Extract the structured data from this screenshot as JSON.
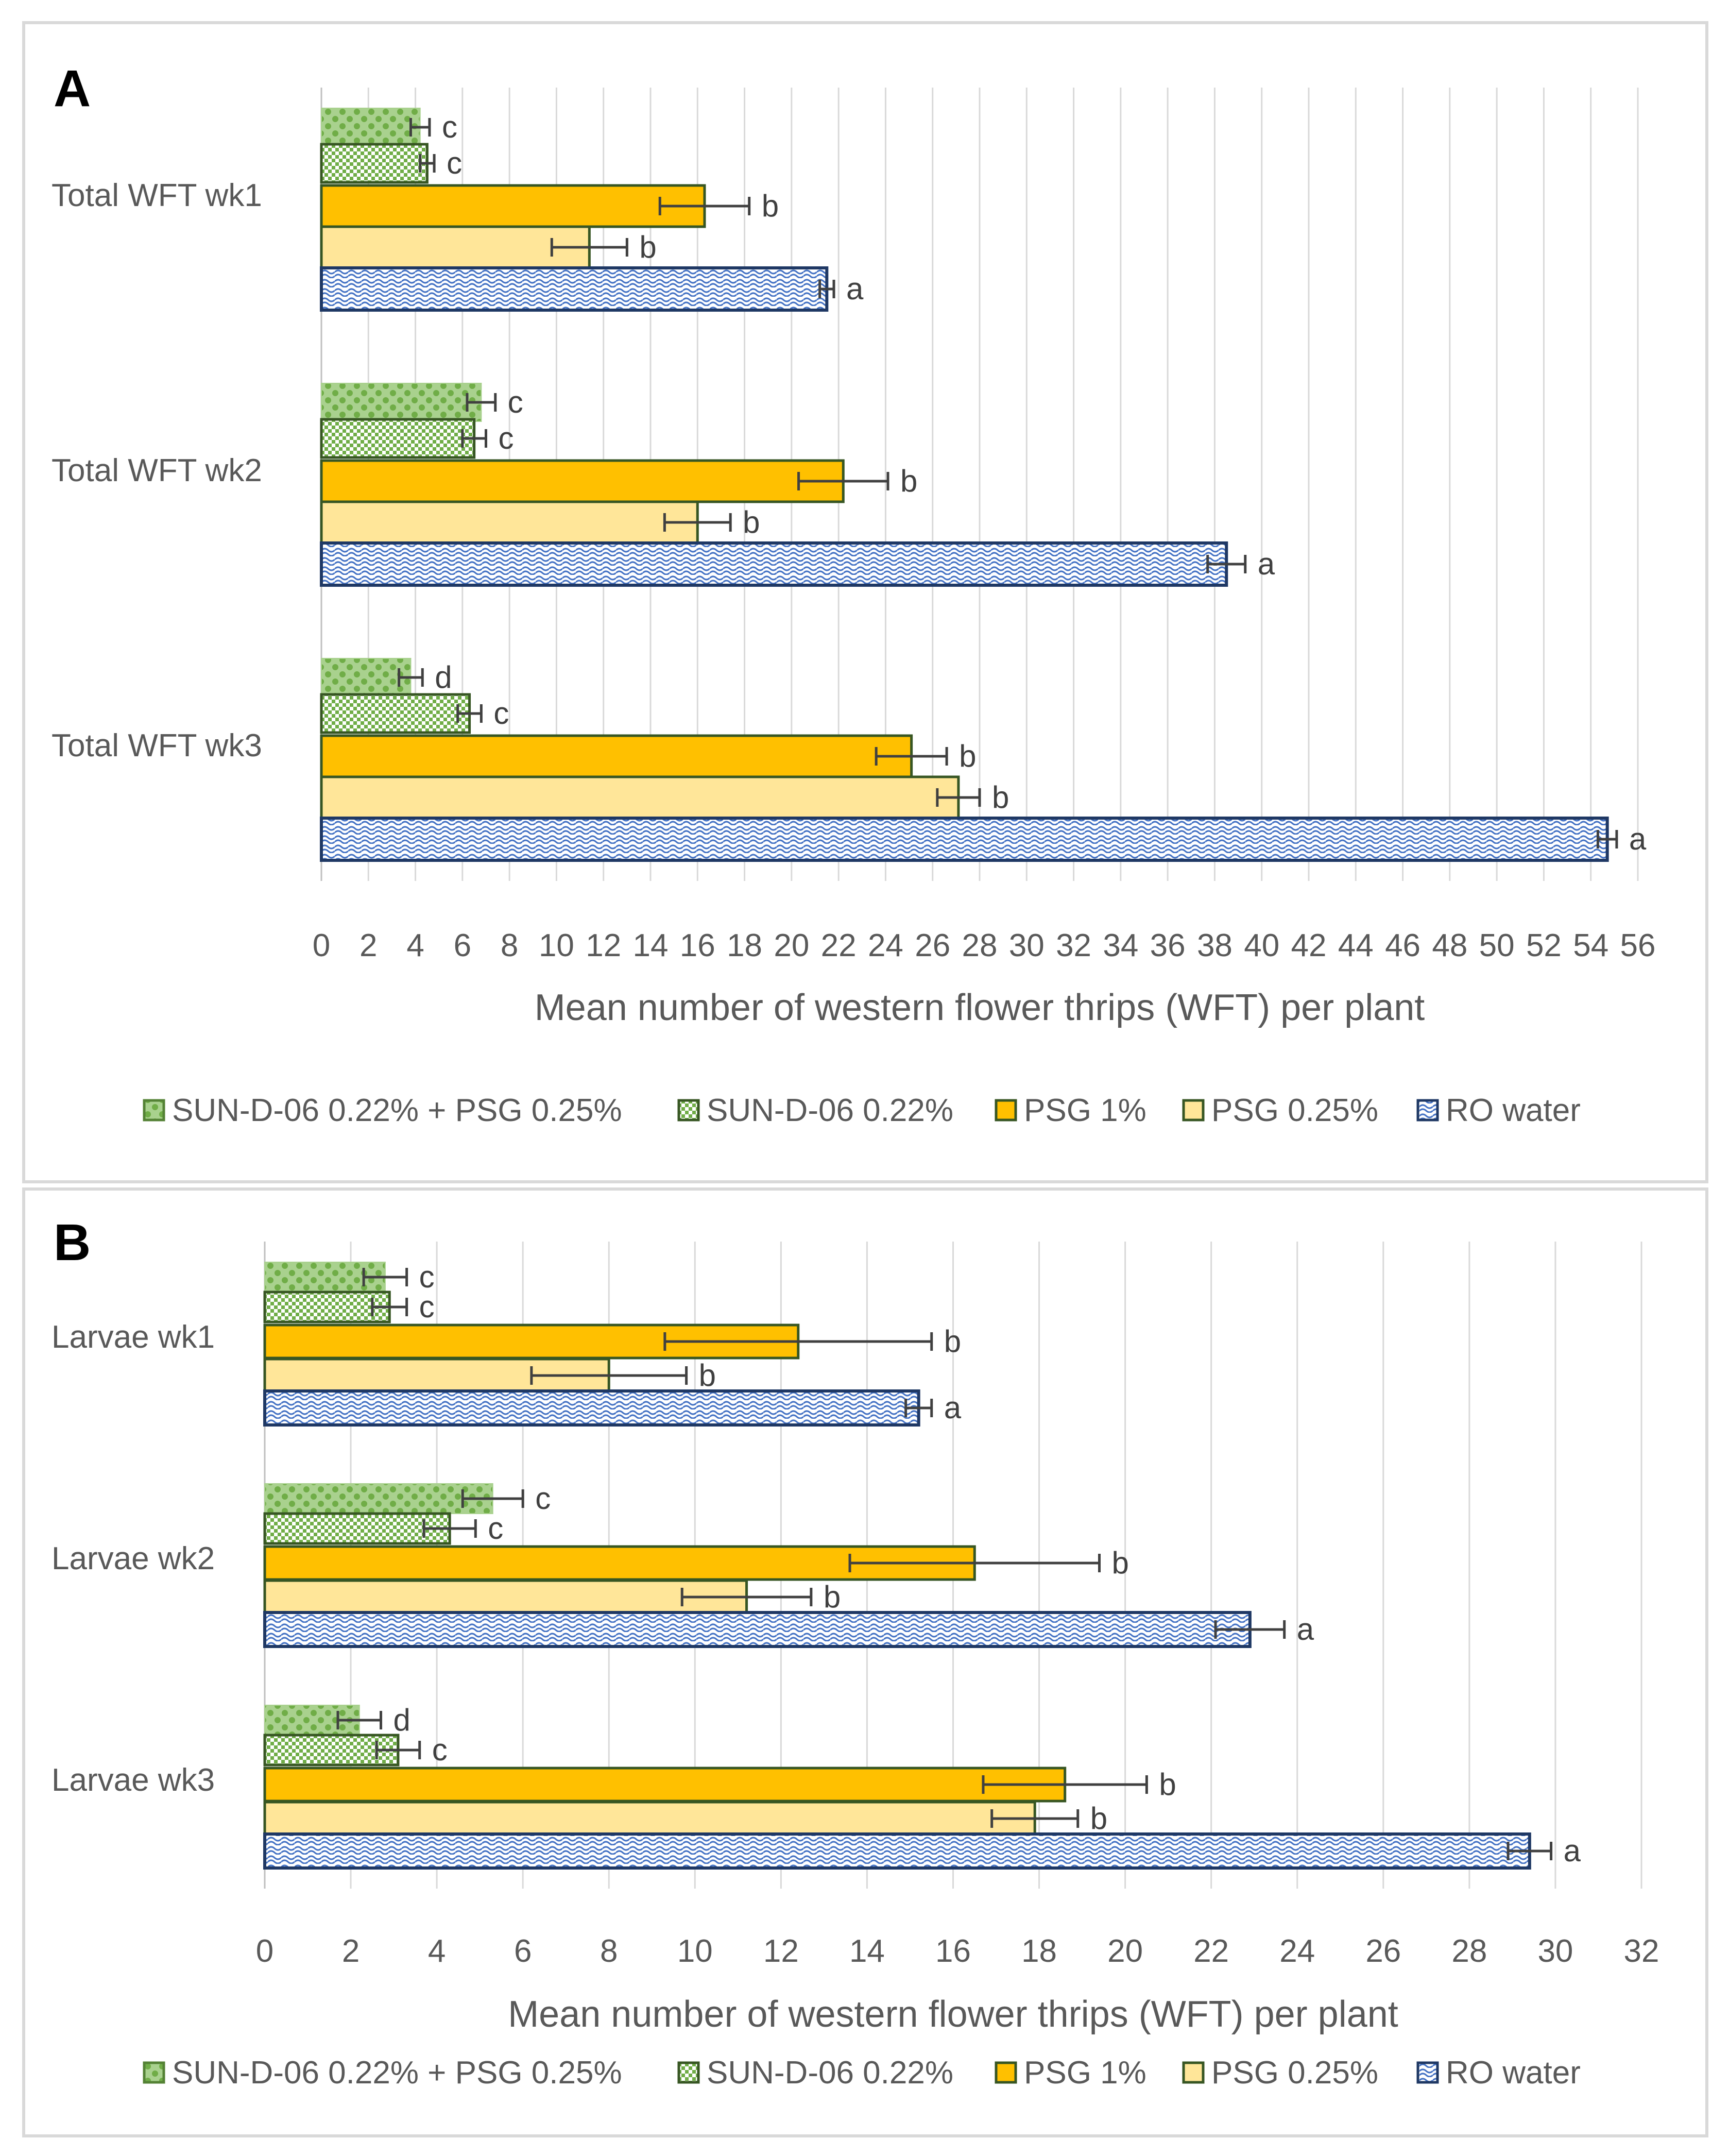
{
  "colors": {
    "combo_fill": "#a9d18e",
    "combo_dot": "#548235",
    "sun_fill": "#ffffff",
    "sun_check": "#70ad47",
    "sun_stroke": "#375623",
    "psg1_fill": "#ffc000",
    "psg1_stroke": "#375623",
    "psg025_fill": "#ffe699",
    "psg025_stroke": "#375623",
    "ro_fill": "#ffffff",
    "ro_wave": "#4472c4",
    "ro_stroke": "#1f3864",
    "grid": "#d9d9d9",
    "errorbar": "#404040"
  },
  "chart_data": [
    {
      "type": "bar",
      "orientation": "horizontal",
      "panel_label": "A",
      "categories": [
        "Total WFT wk1",
        "Total WFT wk2",
        "Total WFT wk3"
      ],
      "xlabel": "Mean number of western flower thrips (WFT) per plant",
      "xlim": [
        0,
        56
      ],
      "xticks": [
        "0",
        "2",
        "4",
        "6",
        "8",
        "10",
        "12",
        "14",
        "16",
        "18",
        "20",
        "22",
        "24",
        "26",
        "28",
        "30",
        "32",
        "34",
        "36",
        "38",
        "40",
        "42",
        "44",
        "46",
        "48",
        "50",
        "52",
        "54",
        "56"
      ],
      "grid": "vertical",
      "legend_position": "bottom",
      "series": [
        {
          "name": "SUN-D-06 0.22% + PSG 0.25%",
          "key": "combo",
          "values": [
            4.2,
            6.8,
            3.8
          ],
          "errors": [
            0.4,
            0.6,
            0.5
          ],
          "letters": [
            "c",
            "c",
            "d"
          ]
        },
        {
          "name": "SUN-D-06 0.22%",
          "key": "sun",
          "values": [
            4.5,
            6.5,
            6.3
          ],
          "errors": [
            0.3,
            0.5,
            0.5
          ],
          "letters": [
            "c",
            "c",
            "c"
          ]
        },
        {
          "name": "PSG 1%",
          "key": "psg1",
          "values": [
            16.3,
            22.2,
            25.1
          ],
          "errors": [
            1.9,
            1.9,
            1.5
          ],
          "letters": [
            "b",
            "b",
            "b"
          ]
        },
        {
          "name": "PSG 0.25%",
          "key": "psg025",
          "values": [
            11.4,
            16.0,
            27.1
          ],
          "errors": [
            1.6,
            1.4,
            0.9
          ],
          "letters": [
            "b",
            "b",
            "b"
          ]
        },
        {
          "name": "RO water",
          "key": "ro",
          "values": [
            21.5,
            38.5,
            54.7
          ],
          "errors": [
            0.3,
            0.8,
            0.4
          ],
          "letters": [
            "a",
            "a",
            "a"
          ]
        }
      ]
    },
    {
      "type": "bar",
      "orientation": "horizontal",
      "panel_label": "B",
      "categories": [
        "Larvae wk1",
        "Larvae wk2",
        "Larvae wk3"
      ],
      "xlabel": "Mean number of western flower thrips (WFT) per plant",
      "xlim": [
        0,
        32
      ],
      "xticks": [
        "0",
        "2",
        "4",
        "6",
        "8",
        "10",
        "12",
        "14",
        "16",
        "18",
        "20",
        "22",
        "24",
        "26",
        "28",
        "30",
        "32"
      ],
      "grid": "vertical",
      "legend_position": "bottom",
      "series": [
        {
          "name": "SUN-D-06 0.22% + PSG 0.25%",
          "key": "combo",
          "values": [
            2.8,
            5.3,
            2.2
          ],
          "errors": [
            0.5,
            0.7,
            0.5
          ],
          "letters": [
            "c",
            "c",
            "d"
          ]
        },
        {
          "name": "SUN-D-06 0.22%",
          "key": "sun",
          "values": [
            2.9,
            4.3,
            3.1
          ],
          "errors": [
            0.4,
            0.6,
            0.5
          ],
          "letters": [
            "c",
            "c",
            "c"
          ]
        },
        {
          "name": "PSG 1%",
          "key": "psg1",
          "values": [
            12.4,
            16.5,
            18.6
          ],
          "errors": [
            3.1,
            2.9,
            1.9
          ],
          "letters": [
            "b",
            "b",
            "b"
          ]
        },
        {
          "name": "PSG 0.25%",
          "key": "psg025",
          "values": [
            8.0,
            11.2,
            17.9
          ],
          "errors": [
            1.8,
            1.5,
            1.0
          ],
          "letters": [
            "b",
            "b",
            "b"
          ]
        },
        {
          "name": "RO water",
          "key": "ro",
          "values": [
            15.2,
            22.9,
            29.4
          ],
          "errors": [
            0.3,
            0.8,
            0.5
          ],
          "letters": [
            "a",
            "a",
            "a"
          ]
        }
      ]
    }
  ]
}
